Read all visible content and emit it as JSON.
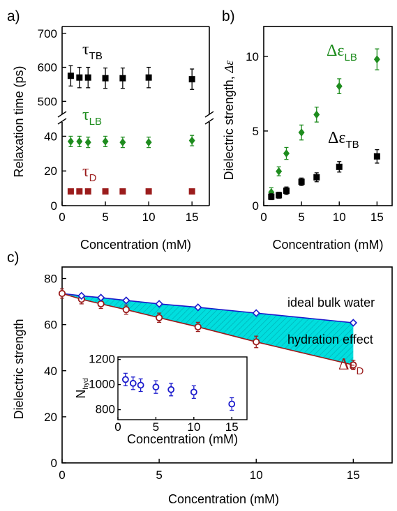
{
  "chart_data": [
    {
      "panel": "a)",
      "type": "scatter",
      "xlabel": "Concentration (mM)",
      "ylabel": "Relaxation time (ps)",
      "xlim": [
        0,
        17
      ],
      "x_ticks": [
        0,
        5,
        10,
        15
      ],
      "y_axis_break": true,
      "ylim_lower": [
        0,
        45
      ],
      "ylim_upper": [
        470,
        720
      ],
      "y_ticks_lower": [
        0,
        20,
        40
      ],
      "y_ticks_upper": [
        500,
        600,
        700
      ],
      "series": [
        {
          "label": "τ",
          "subscript": "TB",
          "color": "#000000",
          "marker": "square",
          "x": [
            1,
            2,
            3,
            5,
            7,
            10,
            15
          ],
          "y": [
            575,
            570,
            570,
            568,
            568,
            570,
            565
          ],
          "err": [
            30,
            30,
            30,
            30,
            30,
            30,
            30
          ]
        },
        {
          "label": "τ",
          "subscript": "LB",
          "color": "#1e8c1e",
          "marker": "diamond",
          "x": [
            1,
            2,
            3,
            5,
            7,
            10,
            15
          ],
          "y": [
            37,
            37,
            36.5,
            37,
            36.5,
            36.5,
            37.5
          ],
          "err": [
            3,
            3,
            3,
            3,
            3,
            3,
            3
          ]
        },
        {
          "label": "τ",
          "subscript": "D",
          "color": "#9b1c1c",
          "marker": "square",
          "x": [
            1,
            2,
            3,
            5,
            7,
            10,
            15
          ],
          "y": [
            8.2,
            8.2,
            8.2,
            8.2,
            8.2,
            8.2,
            8.2
          ],
          "err": [
            0.5,
            0.5,
            0.5,
            0.5,
            0.5,
            0.5,
            0.5
          ]
        }
      ]
    },
    {
      "panel": "b)",
      "type": "scatter",
      "xlabel": "Concentration (mM)",
      "ylabel": "Dielectric strength, ",
      "ylabel_symbol": "Δε",
      "xlim": [
        0,
        17
      ],
      "ylim": [
        0,
        12
      ],
      "x_ticks": [
        0,
        5,
        10,
        15
      ],
      "y_ticks": [
        0,
        5,
        10
      ],
      "series": [
        {
          "label": "Δε",
          "subscript": "LB",
          "color": "#1e8c1e",
          "marker": "diamond",
          "x": [
            1,
            2,
            3,
            5,
            7,
            10,
            15
          ],
          "y": [
            0.9,
            2.3,
            3.5,
            4.9,
            6.1,
            8.0,
            9.8
          ],
          "err": [
            0.3,
            0.3,
            0.4,
            0.5,
            0.5,
            0.5,
            0.7
          ]
        },
        {
          "label": "Δε",
          "subscript": "TB",
          "color": "#000000",
          "marker": "square",
          "x": [
            1,
            2,
            3,
            5,
            7,
            10,
            15
          ],
          "y": [
            0.6,
            0.7,
            1.0,
            1.6,
            1.9,
            2.6,
            3.3
          ],
          "err": [
            0.2,
            0.2,
            0.25,
            0.25,
            0.3,
            0.35,
            0.45
          ]
        }
      ]
    },
    {
      "panel": "c)",
      "type": "line",
      "xlabel": "Concentration (mM)",
      "ylabel": "Dielectric strength",
      "xlim": [
        0,
        17
      ],
      "ylim": [
        0,
        85
      ],
      "x_ticks": [
        0,
        5,
        10,
        15
      ],
      "y_ticks": [
        0,
        20,
        40,
        60,
        80
      ],
      "series": [
        {
          "label": "ideal bulk water",
          "color": "#1a1acc",
          "marker": "diamond-open",
          "x": [
            0,
            1,
            2,
            3.3,
            5,
            7,
            10,
            15
          ],
          "y": [
            73.5,
            72.5,
            71.7,
            70.5,
            69.0,
            67.5,
            65.0,
            60.8
          ]
        },
        {
          "label": "Δε",
          "subscript": "D",
          "color": "#9b1c1c",
          "marker": "circle-open",
          "x": [
            0,
            1,
            2,
            3.3,
            5,
            7,
            10,
            15
          ],
          "y": [
            73.5,
            71.0,
            69.0,
            66.5,
            63.0,
            59.0,
            52.5,
            42.5
          ],
          "err": [
            2,
            2,
            2,
            2,
            2,
            2,
            2.5,
            2
          ]
        }
      ],
      "annotations": [
        "hydration effect"
      ],
      "fill_color": "#00dede",
      "inset": {
        "type": "scatter",
        "xlabel": "Concentration (mM)",
        "ylabel": "N",
        "ylabel_subscript": "hyd",
        "xlim": [
          0,
          17
        ],
        "ylim": [
          720,
          1220
        ],
        "x_ticks": [
          0,
          5,
          10,
          15
        ],
        "y_ticks": [
          800,
          1000,
          1200
        ],
        "series": [
          {
            "color": "#1a1acc",
            "marker": "circle-open",
            "x": [
              1,
              2,
              3,
              5,
              7,
              10,
              15
            ],
            "y": [
              1040,
              1010,
              995,
              980,
              960,
              940,
              845
            ],
            "err": [
              50,
              50,
              50,
              50,
              50,
              50,
              50
            ]
          }
        ]
      }
    }
  ]
}
